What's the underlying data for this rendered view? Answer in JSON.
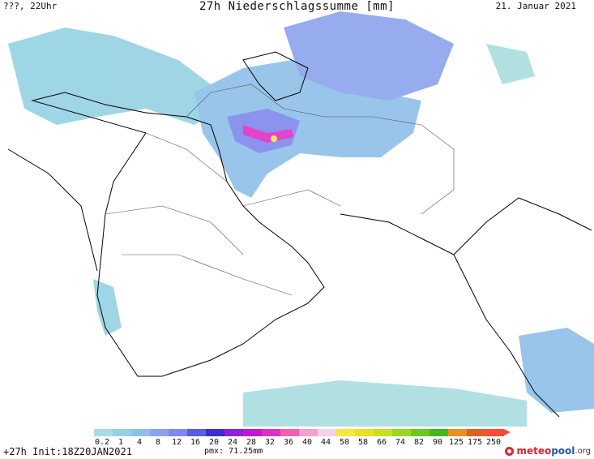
{
  "header": {
    "left": "???, 22Uhr",
    "title": "27h Niederschlagssumme [mm]",
    "right": "21. Januar 2021"
  },
  "footer": {
    "left": "+27h Init:18Z20JAN2021",
    "pmx": "pmx: 71.25mm",
    "logo_part1": "meteo",
    "logo_part2": "pool",
    "logo_part3": ".org"
  },
  "legend": {
    "labels": [
      "0.2",
      "1",
      "4",
      "8",
      "12",
      "16",
      "20",
      "24",
      "28",
      "32",
      "36",
      "40",
      "44",
      "50",
      "58",
      "66",
      "74",
      "82",
      "90",
      "125",
      "175",
      "250"
    ],
    "colors": [
      "#a9dde0",
      "#95d1e3",
      "#8ebfe9",
      "#8ca4ee",
      "#7f88ee",
      "#5b5be0",
      "#3b2fd0",
      "#9020d8",
      "#c018d0",
      "#e030c8",
      "#f060b0",
      "#f4a0d0",
      "#f6d0e8",
      "#f4e840",
      "#e8e020",
      "#c8e020",
      "#9ad820",
      "#6cc820",
      "#40b820",
      "#e89020",
      "#e06020",
      "#ff4a3c"
    ],
    "colors_meaning": "precipitation color scale"
  },
  "map": {
    "region": "Middle East / Arabian Peninsula / South Asia",
    "precip_color_light": "#a9dde0",
    "precip_color_mid": "#8ebfe9",
    "precip_color_strong": "#5b5be0",
    "precip_color_peak": "#e030c8",
    "precip_color_max": "#f4e840",
    "coast_color": "#000000",
    "border_color": "#555555"
  }
}
